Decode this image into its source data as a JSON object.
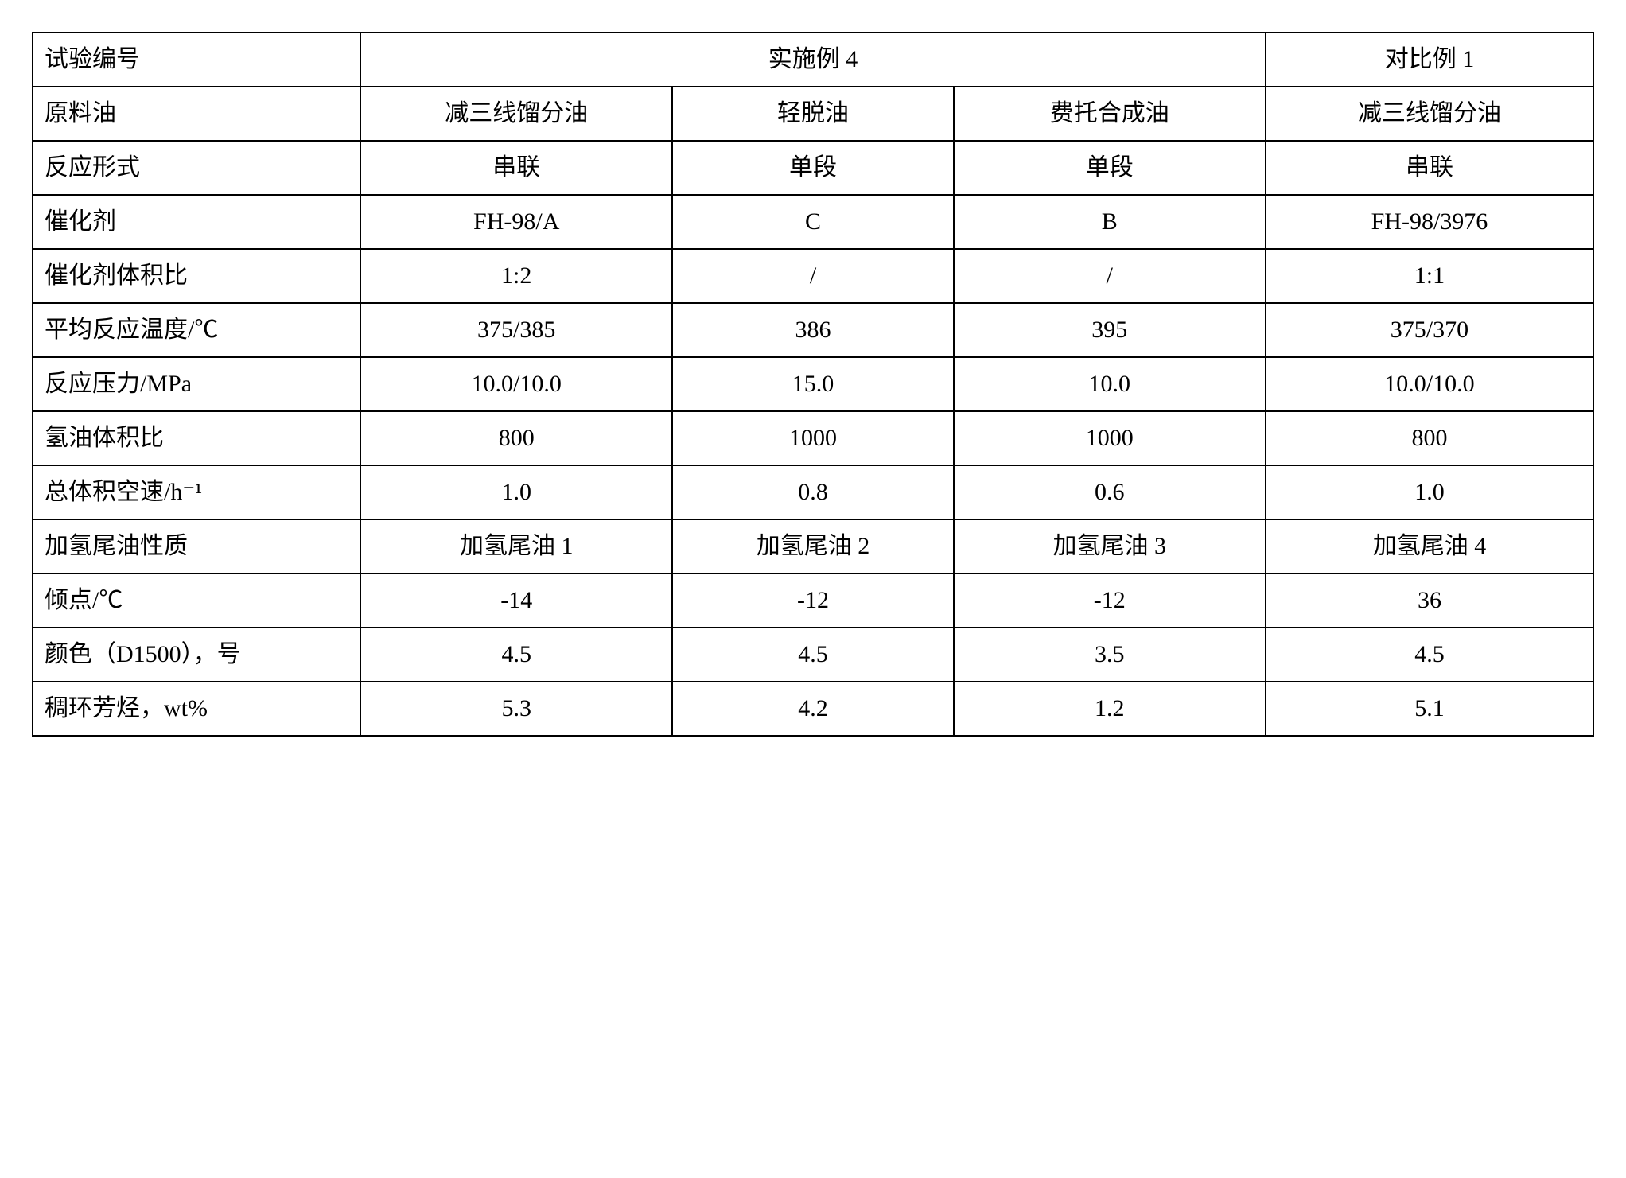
{
  "table": {
    "border_color": "#000000",
    "background_color": "#ffffff",
    "text_color": "#000000",
    "font_family": "SimSun",
    "label_fontsize": 30,
    "value_fontsize": 30,
    "col_widths_pct": [
      21,
      20,
      18,
      20,
      21
    ],
    "header": {
      "r0c0": "试验编号",
      "r0c1_span3": "实施例 4",
      "r0c4": "对比例 1"
    },
    "rows": [
      {
        "label": "原料油",
        "c1": "减三线馏分油",
        "c2": "轻脱油",
        "c3": "费托合成油",
        "c4": "减三线馏分油"
      },
      {
        "label": "反应形式",
        "c1": "串联",
        "c2": "单段",
        "c3": "单段",
        "c4": "串联"
      },
      {
        "label": "催化剂",
        "c1": "FH-98/A",
        "c2": "C",
        "c3": "B",
        "c4": "FH-98/3976"
      },
      {
        "label": "催化剂体积比",
        "c1": "1:2",
        "c2": "/",
        "c3": "/",
        "c4": "1:1"
      },
      {
        "label": "平均反应温度/℃",
        "c1": "375/385",
        "c2": "386",
        "c3": "395",
        "c4": "375/370"
      },
      {
        "label": "反应压力/MPa",
        "c1": "10.0/10.0",
        "c2": "15.0",
        "c3": "10.0",
        "c4": "10.0/10.0"
      },
      {
        "label": "氢油体积比",
        "c1": "800",
        "c2": "1000",
        "c3": "1000",
        "c4": "800"
      },
      {
        "label": "总体积空速/h⁻¹",
        "c1": "1.0",
        "c2": "0.8",
        "c3": "0.6",
        "c4": "1.0"
      },
      {
        "label": "加氢尾油性质",
        "c1": "加氢尾油 1",
        "c2": "加氢尾油 2",
        "c3": "加氢尾油 3",
        "c4": "加氢尾油 4"
      },
      {
        "label": "倾点/℃",
        "c1": "-14",
        "c2": "-12",
        "c3": "-12",
        "c4": "36"
      },
      {
        "label": "颜色（D1500），号",
        "c1": "4.5",
        "c2": "4.5",
        "c3": "3.5",
        "c4": "4.5"
      },
      {
        "label": "稠环芳烃，wt%",
        "c1": "5.3",
        "c2": "4.2",
        "c3": "1.2",
        "c4": "5.1"
      }
    ]
  }
}
